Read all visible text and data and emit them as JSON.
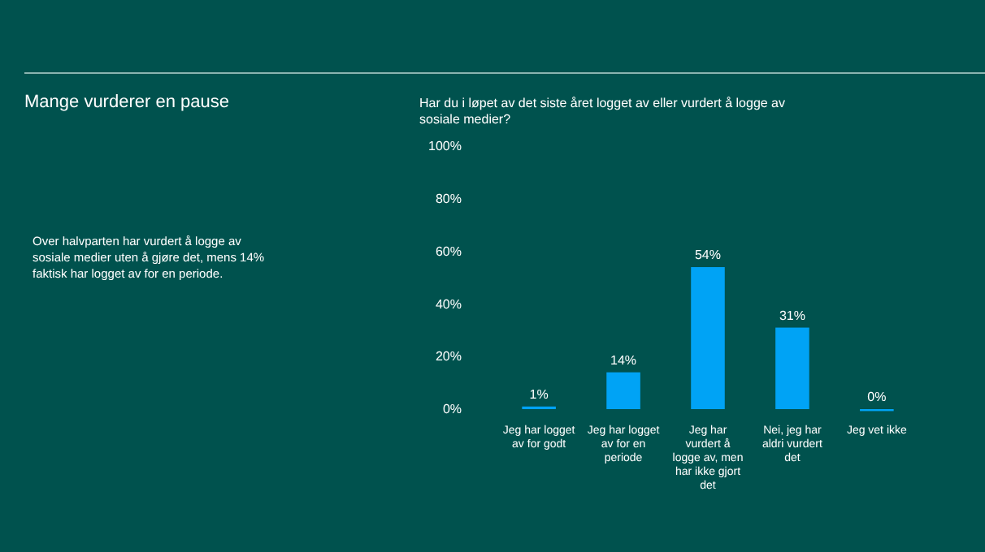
{
  "chart_data": {
    "type": "bar",
    "title": "Mange vurderer en pause",
    "subtitle": "Har du i løpet av det siste året logget av eller vurdert å logge av sosiale medier?",
    "annotations": [
      "Over halvparten har vurdert å logge av sosiale medier uten å gjøre det, mens 14% faktisk har logget av for en periode."
    ],
    "categories": [
      "Jeg har logget av for godt",
      "Jeg har logget av for en periode",
      "Jeg har vurdert å logge av, men har ikke gjort det",
      "Nei, jeg har aldri vurdert det",
      "Jeg vet ikke"
    ],
    "values": [
      1,
      14,
      54,
      31,
      0
    ],
    "value_labels": [
      "1%",
      "14%",
      "54%",
      "31%",
      "0%"
    ],
    "color": "#00a3f5",
    "ylim": [
      0,
      100
    ],
    "yticks": [
      {
        "value": 0,
        "label": "0%"
      },
      {
        "value": 20,
        "label": "20%"
      },
      {
        "value": 40,
        "label": "40%"
      },
      {
        "value": 60,
        "label": "60%"
      },
      {
        "value": 80,
        "label": "80%"
      },
      {
        "value": 100,
        "label": "100%"
      }
    ],
    "grid": false
  }
}
